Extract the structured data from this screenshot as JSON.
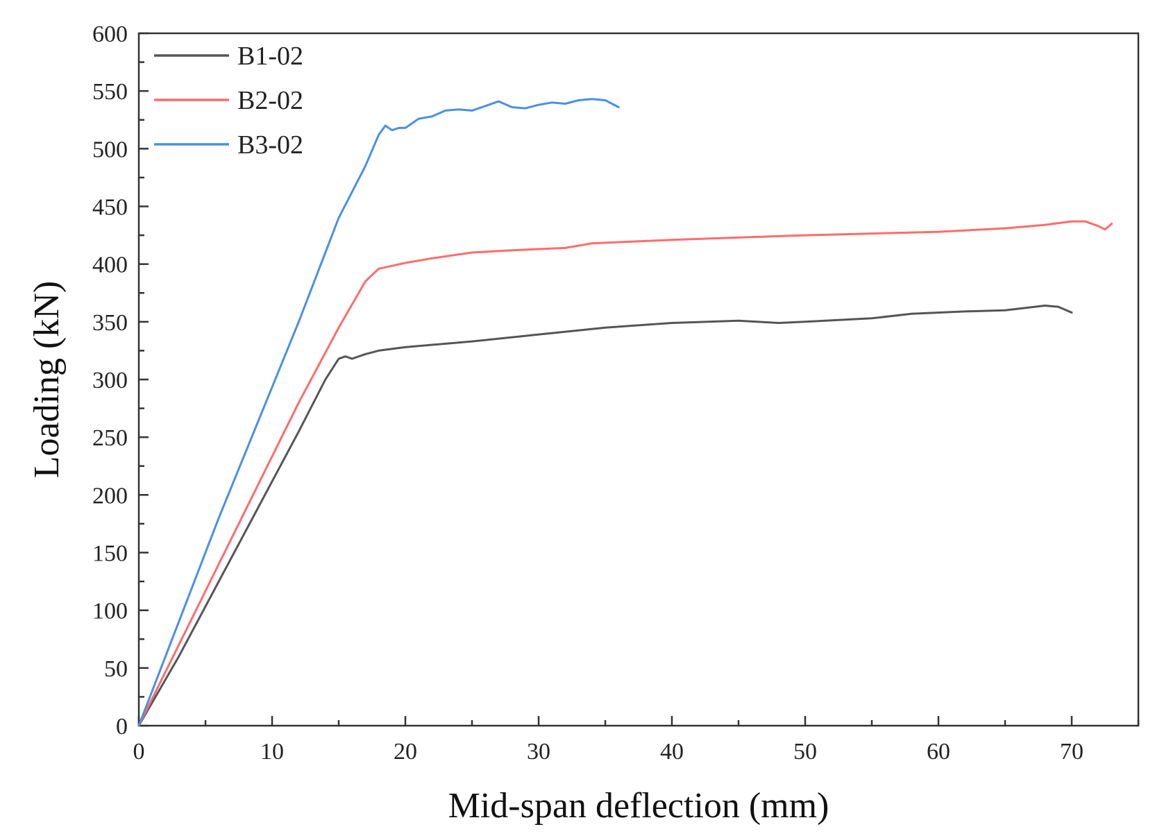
{
  "chart_data": {
    "type": "line",
    "title": "",
    "xlabel": "Mid-span deflection (mm)",
    "ylabel": "Loading (kN)",
    "xlim": [
      0,
      75
    ],
    "ylim": [
      0,
      600
    ],
    "xticks": [
      0,
      10,
      20,
      30,
      40,
      50,
      60,
      70
    ],
    "yticks": [
      0,
      50,
      100,
      150,
      200,
      250,
      300,
      350,
      400,
      450,
      500,
      550,
      600
    ],
    "grid": false,
    "legend_position": "top-left",
    "series": [
      {
        "name": "B1-02",
        "color": "#555555",
        "points": [
          [
            0,
            0
          ],
          [
            3,
            60
          ],
          [
            6,
            125
          ],
          [
            9,
            190
          ],
          [
            12,
            255
          ],
          [
            14,
            300
          ],
          [
            15,
            318
          ],
          [
            15.5,
            320
          ],
          [
            16,
            318
          ],
          [
            17,
            322
          ],
          [
            18,
            325
          ],
          [
            20,
            328
          ],
          [
            25,
            333
          ],
          [
            30,
            339
          ],
          [
            35,
            345
          ],
          [
            40,
            349
          ],
          [
            45,
            351
          ],
          [
            48,
            349
          ],
          [
            50,
            350
          ],
          [
            55,
            353
          ],
          [
            58,
            357
          ],
          [
            62,
            359
          ],
          [
            65,
            360
          ],
          [
            68,
            364
          ],
          [
            69,
            363
          ],
          [
            70,
            358
          ]
        ]
      },
      {
        "name": "B2-02",
        "color": "#ff6b6b",
        "points": [
          [
            0,
            0
          ],
          [
            3,
            70
          ],
          [
            6,
            140
          ],
          [
            9,
            210
          ],
          [
            12,
            280
          ],
          [
            15,
            345
          ],
          [
            17,
            385
          ],
          [
            18,
            396
          ],
          [
            20,
            401
          ],
          [
            22,
            405
          ],
          [
            25,
            410
          ],
          [
            28,
            412
          ],
          [
            32,
            414
          ],
          [
            34,
            418
          ],
          [
            40,
            421
          ],
          [
            50,
            425
          ],
          [
            60,
            428
          ],
          [
            65,
            431
          ],
          [
            68,
            434
          ],
          [
            70,
            437
          ],
          [
            71,
            437
          ],
          [
            72,
            433
          ],
          [
            72.5,
            430
          ],
          [
            73,
            435
          ]
        ]
      },
      {
        "name": "B3-02",
        "color": "#4a8fe7",
        "points": [
          [
            0,
            0
          ],
          [
            3,
            90
          ],
          [
            6,
            180
          ],
          [
            9,
            265
          ],
          [
            12,
            350
          ],
          [
            15,
            440
          ],
          [
            17,
            485
          ],
          [
            18,
            512
          ],
          [
            18.5,
            520
          ],
          [
            19,
            516
          ],
          [
            19.5,
            518
          ],
          [
            20,
            518
          ],
          [
            21,
            526
          ],
          [
            22,
            528
          ],
          [
            23,
            533
          ],
          [
            24,
            534
          ],
          [
            25,
            533
          ],
          [
            26,
            537
          ],
          [
            27,
            541
          ],
          [
            28,
            536
          ],
          [
            29,
            535
          ],
          [
            30,
            538
          ],
          [
            31,
            540
          ],
          [
            32,
            539
          ],
          [
            33,
            542
          ],
          [
            34,
            543
          ],
          [
            35,
            542
          ],
          [
            36,
            536
          ]
        ]
      }
    ]
  }
}
